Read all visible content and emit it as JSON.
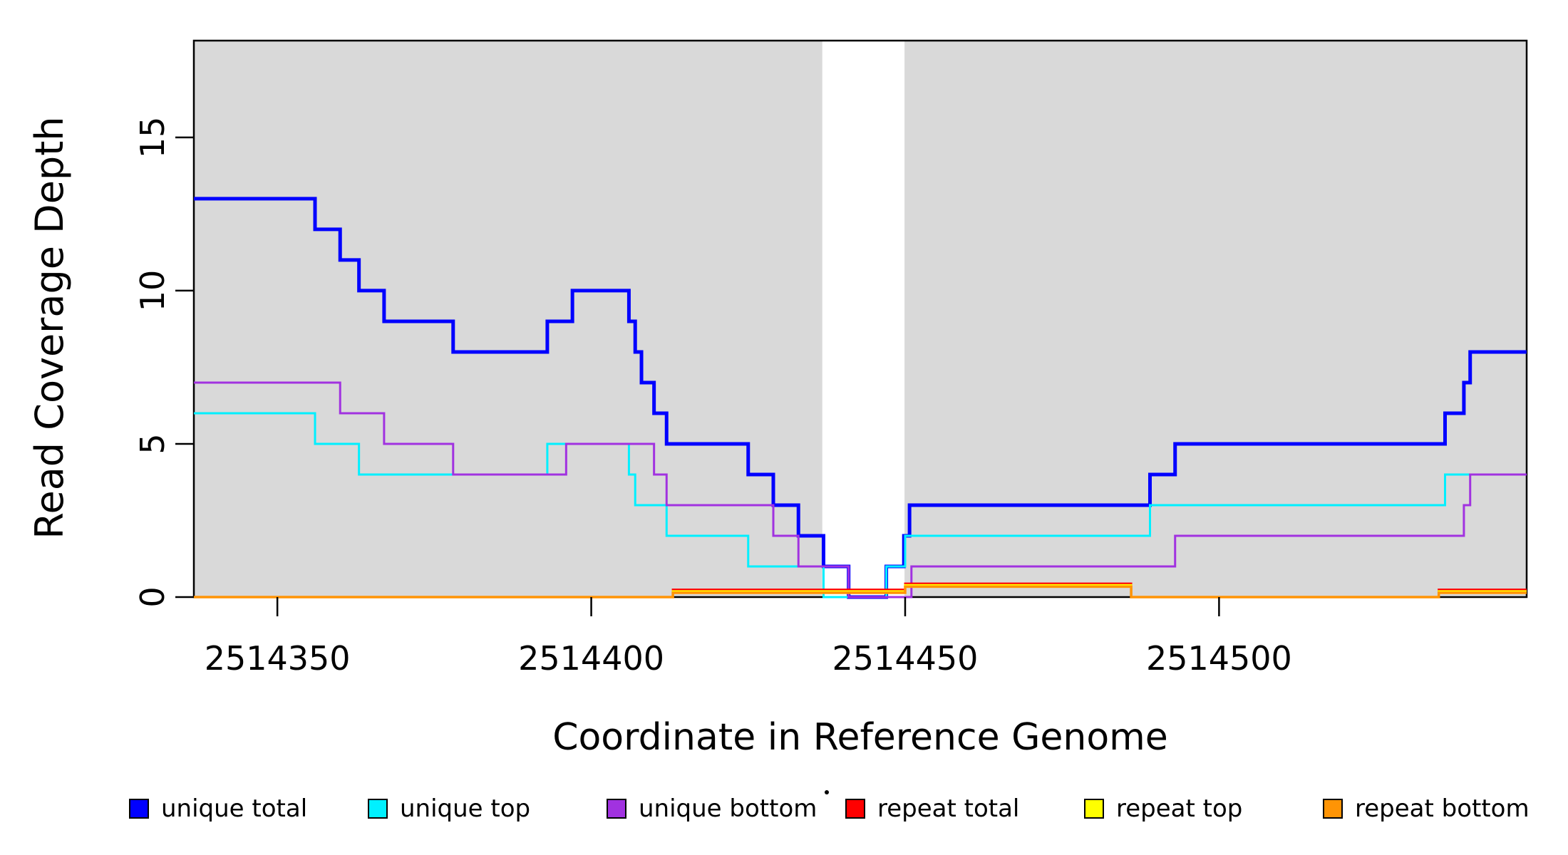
{
  "chart_data": {
    "type": "line",
    "line_style": "step",
    "title": "",
    "xlabel": "Coordinate in Reference Genome",
    "ylabel": "Read Coverage Depth",
    "x_range": [
      2514336.7,
      2514549
    ],
    "y_range": [
      0,
      18.16
    ],
    "x_ticks": [
      2514350,
      2514400,
      2514450,
      2514500
    ],
    "y_ticks": [
      0,
      5,
      10,
      15
    ],
    "grid": false,
    "legend_position": "bottom",
    "panel_background": {
      "color": "#D9D9D9",
      "shaded_regions": [
        [
          2514336.7,
          2514436.8
        ],
        [
          2514449.9,
          2514549
        ]
      ],
      "white_gap_region": [
        2514436.8,
        2514449.9
      ]
    },
    "series": [
      {
        "name": "unique total",
        "color": "#0000FF",
        "line_width": 5,
        "steps": [
          [
            2514336.7,
            13
          ],
          [
            2514356,
            12
          ],
          [
            2514360,
            11
          ],
          [
            2514363,
            10
          ],
          [
            2514367,
            9
          ],
          [
            2514378,
            8
          ],
          [
            2514393,
            9
          ],
          [
            2514397,
            10
          ],
          [
            2514406,
            9
          ],
          [
            2514407,
            8
          ],
          [
            2514408,
            7
          ],
          [
            2514410,
            6
          ],
          [
            2514412,
            5
          ],
          [
            2514425,
            4
          ],
          [
            2514429,
            3
          ],
          [
            2514433,
            2
          ],
          [
            2514437,
            1
          ],
          [
            2514441,
            0
          ],
          [
            2514447,
            1
          ],
          [
            2514449.8,
            2
          ],
          [
            2514450.7,
            3
          ],
          [
            2514489,
            4
          ],
          [
            2514493,
            5
          ],
          [
            2514536,
            6
          ],
          [
            2514539,
            7
          ],
          [
            2514540,
            8
          ]
        ]
      },
      {
        "name": "unique top",
        "color": "#00F0FF",
        "line_width": 3,
        "steps": [
          [
            2514336.7,
            6
          ],
          [
            2514356,
            5
          ],
          [
            2514363,
            4
          ],
          [
            2514393,
            5
          ],
          [
            2514406,
            4
          ],
          [
            2514407,
            3
          ],
          [
            2514412,
            2
          ],
          [
            2514425,
            1
          ],
          [
            2514437,
            0
          ],
          [
            2514447,
            1
          ],
          [
            2514450,
            2
          ],
          [
            2514489,
            3
          ],
          [
            2514536,
            4
          ]
        ]
      },
      {
        "name": "unique bottom",
        "color": "#A132E0",
        "line_width": 3,
        "steps": [
          [
            2514336.7,
            7
          ],
          [
            2514360,
            6
          ],
          [
            2514367,
            5
          ],
          [
            2514378,
            4
          ],
          [
            2514396,
            5
          ],
          [
            2514410,
            4
          ],
          [
            2514412,
            3
          ],
          [
            2514429,
            2
          ],
          [
            2514433,
            1
          ],
          [
            2514441,
            0
          ],
          [
            2514451,
            1
          ],
          [
            2514493,
            2
          ],
          [
            2514539,
            3
          ],
          [
            2514540,
            4
          ]
        ]
      },
      {
        "name": "repeat total",
        "color": "#FF0000",
        "line_width": 3,
        "steps": [
          [
            2514336.7,
            0
          ],
          [
            2514413,
            0.24
          ],
          [
            2514450,
            0.44
          ],
          [
            2514486,
            0
          ],
          [
            2514535,
            0.24
          ]
        ]
      },
      {
        "name": "repeat top",
        "color": "#FFFF00",
        "line_width": 3,
        "steps": [
          [
            2514336.7,
            0
          ],
          [
            2514413,
            0.19
          ],
          [
            2514450,
            0.39
          ],
          [
            2514486,
            0
          ],
          [
            2514535,
            0.19
          ]
        ]
      },
      {
        "name": "repeat bottom",
        "color": "#FF9405",
        "line_width": 3.5,
        "steps": [
          [
            2514336.7,
            0
          ],
          [
            2514413,
            0.14
          ],
          [
            2514450,
            0.34
          ],
          [
            2514486,
            0
          ],
          [
            2514535,
            0.14
          ]
        ]
      }
    ],
    "artifacts": {
      "small_dot_between_legend_items": {
        "x": 1160,
        "y": 1112
      }
    }
  }
}
